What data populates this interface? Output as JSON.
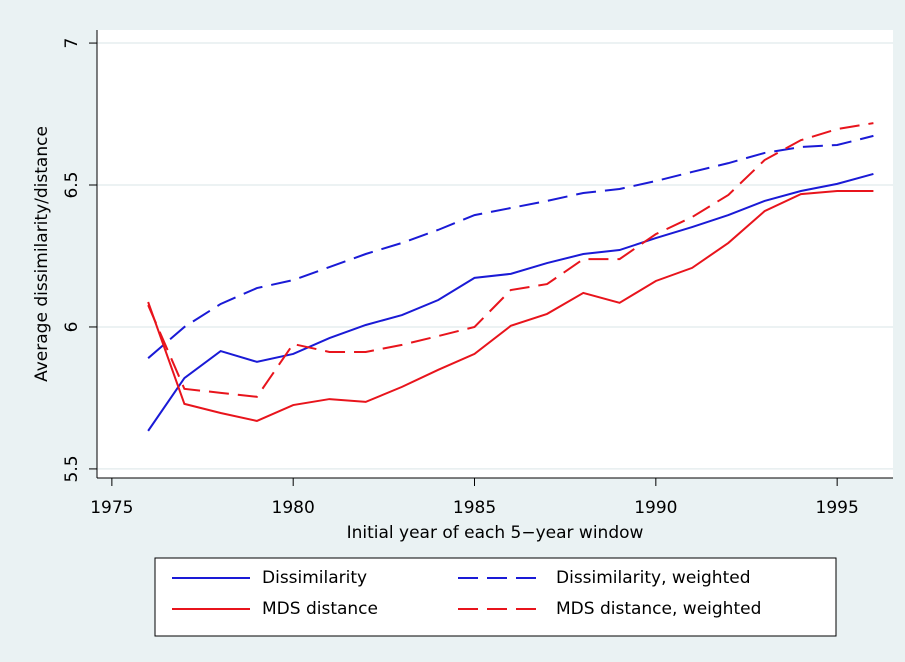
{
  "chart_data": {
    "type": "line",
    "y_label": "Average dissimilarity/distance",
    "x_label": "Initial year of each 5−year window",
    "x": [
      1976,
      1977,
      1978,
      1979,
      1980,
      1981,
      1982,
      1983,
      1984,
      1985,
      1986,
      1987,
      1988,
      1989,
      1990,
      1991,
      1992,
      1993,
      1994,
      1995,
      1996
    ],
    "series": [
      {
        "name": "Dissimilarity",
        "color": "#1a1ad6",
        "dashed": false,
        "values": [
          5.634,
          5.82,
          5.915,
          5.877,
          5.905,
          5.961,
          6.007,
          6.042,
          6.095,
          6.173,
          6.187,
          6.225,
          6.257,
          6.271,
          6.313,
          6.352,
          6.394,
          6.444,
          6.479,
          6.504,
          6.539
        ]
      },
      {
        "name": "Dissimilarity, weighted",
        "color": "#1a1ad6",
        "dashed": true,
        "values": [
          5.89,
          6.0,
          6.081,
          6.137,
          6.165,
          6.211,
          6.257,
          6.296,
          6.342,
          6.394,
          6.419,
          6.444,
          6.472,
          6.486,
          6.514,
          6.546,
          6.577,
          6.613,
          6.634,
          6.641,
          6.673
        ]
      },
      {
        "name": "MDS distance",
        "color": "#e8141c",
        "dashed": false,
        "values": [
          6.088,
          5.729,
          5.697,
          5.669,
          5.725,
          5.746,
          5.736,
          5.789,
          5.849,
          5.905,
          6.004,
          6.046,
          6.12,
          6.085,
          6.162,
          6.208,
          6.296,
          6.408,
          6.468,
          6.479,
          6.479
        ]
      },
      {
        "name": "MDS distance, weighted",
        "color": "#e8141c",
        "dashed": true,
        "values": [
          6.077,
          5.782,
          5.768,
          5.754,
          5.94,
          5.912,
          5.912,
          5.937,
          5.968,
          6.0,
          6.13,
          6.151,
          6.239,
          6.239,
          6.327,
          6.387,
          6.465,
          6.588,
          6.658,
          6.697,
          6.718
        ]
      }
    ],
    "xlim": [
      1974.59,
      1996.54
    ],
    "xticks": [
      1975,
      1980,
      1985,
      1990,
      1995
    ],
    "ylim": [
      5.468,
      7.046
    ],
    "yticks": [
      5.5,
      6,
      6.5,
      7
    ],
    "grid": true,
    "legend_position": "bottom"
  }
}
